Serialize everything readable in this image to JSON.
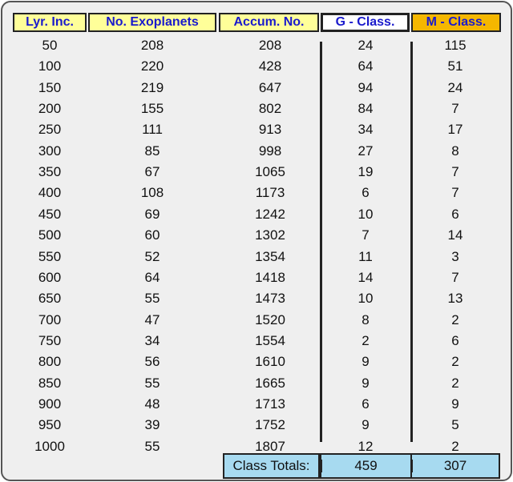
{
  "table": {
    "header": [
      "Lyr. Inc.",
      "No. Exoplanets",
      "Accum. No.",
      "G - Class.",
      "M - Class."
    ],
    "rows": [
      [
        50,
        208,
        208,
        24,
        115
      ],
      [
        100,
        220,
        428,
        64,
        51
      ],
      [
        150,
        219,
        647,
        94,
        24
      ],
      [
        200,
        155,
        802,
        84,
        7
      ],
      [
        250,
        111,
        913,
        34,
        17
      ],
      [
        300,
        85,
        998,
        27,
        8
      ],
      [
        350,
        67,
        1065,
        19,
        7
      ],
      [
        400,
        108,
        1173,
        6,
        7
      ],
      [
        450,
        69,
        1242,
        10,
        6
      ],
      [
        500,
        60,
        1302,
        7,
        14
      ],
      [
        550,
        52,
        1354,
        11,
        3
      ],
      [
        600,
        64,
        1418,
        14,
        7
      ],
      [
        650,
        55,
        1473,
        10,
        13
      ],
      [
        700,
        47,
        1520,
        8,
        2
      ],
      [
        750,
        34,
        1554,
        2,
        6
      ],
      [
        800,
        56,
        1610,
        9,
        2
      ],
      [
        850,
        55,
        1665,
        9,
        2
      ],
      [
        900,
        48,
        1713,
        6,
        9
      ],
      [
        950,
        39,
        1752,
        9,
        5
      ],
      [
        1000,
        55,
        1807,
        12,
        2
      ]
    ],
    "footer": {
      "label": "Class Totals:",
      "g_total": 459,
      "m_total": 307
    }
  }
}
